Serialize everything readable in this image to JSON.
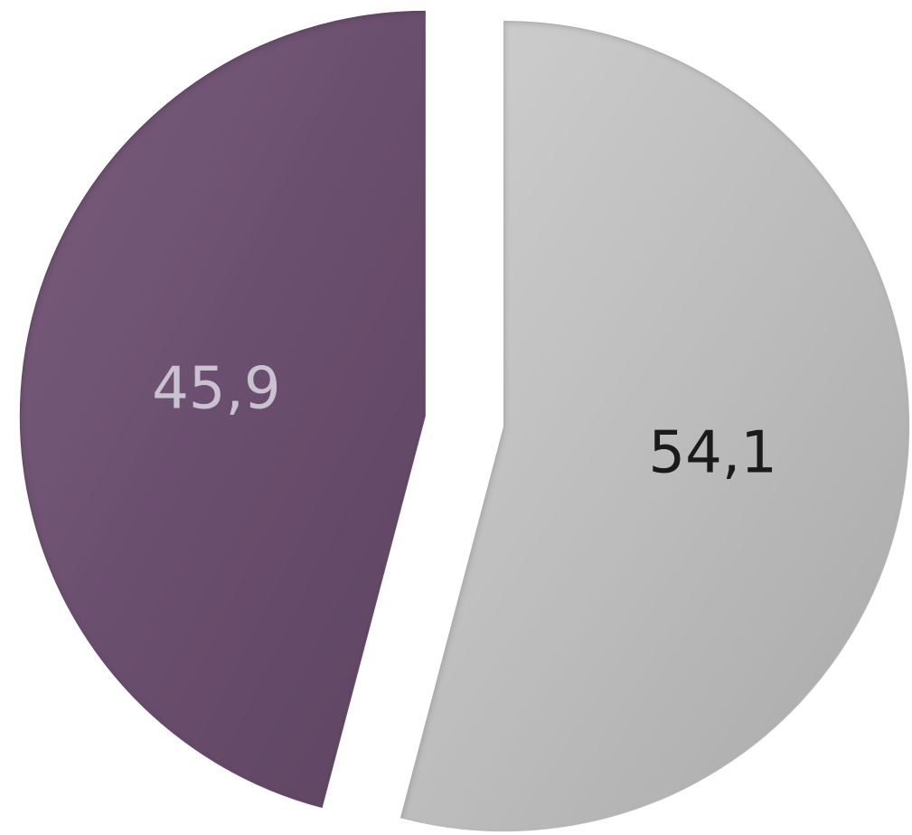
{
  "chart_data": {
    "type": "pie",
    "values": [
      45.9,
      54.1
    ],
    "data_labels": [
      "45,9",
      "54,1"
    ],
    "colors": [
      "#6B4F6E",
      "#BDBDBD"
    ],
    "label_colors": [
      "#C9C2D0",
      "#1A1A1A"
    ],
    "title": "",
    "legend": "none",
    "exploded": true
  }
}
